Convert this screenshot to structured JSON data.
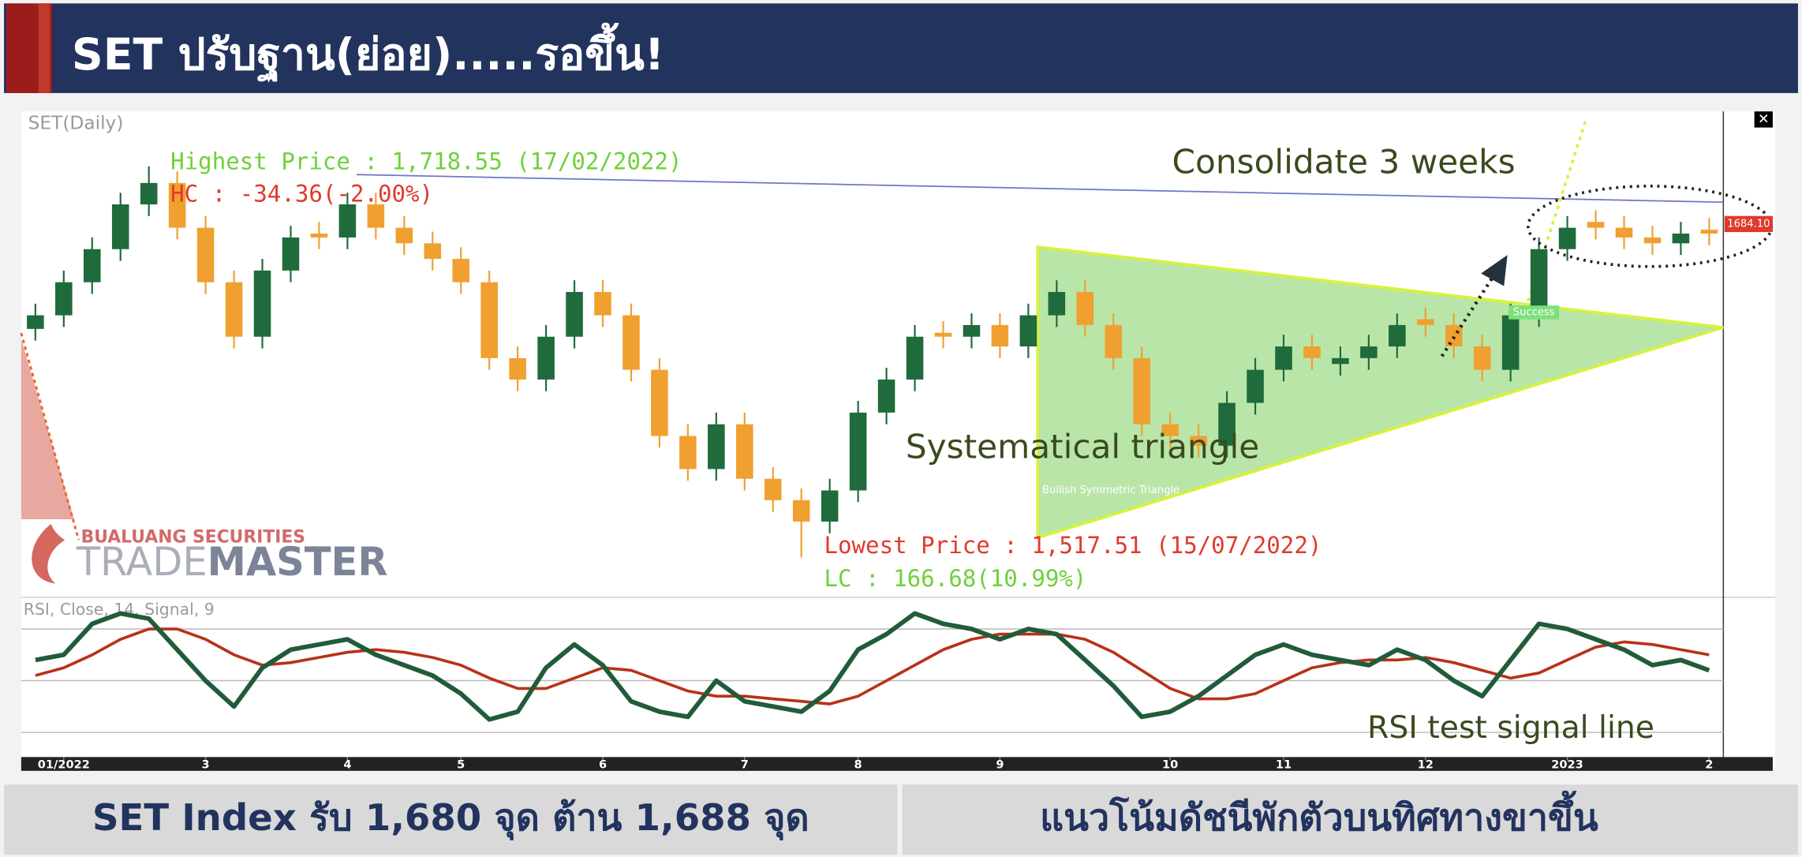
{
  "header": {
    "title": "SET ปรับฐาน(ย่อย).....รอขึ้น!"
  },
  "footer": {
    "left": "SET Index รับ 1,680 จุด ต้าน 1,688 จุด",
    "right": "แนวโน้มดัชนีพักตัวบนทิศทางขาขึ้น"
  },
  "watermark": {
    "company": "BUALUANG SECURITIES",
    "brand_a": "TRADE",
    "brand_b": "MASTER"
  },
  "chart_data": [
    {
      "type": "candlestick",
      "title": "SET(Daily)",
      "up_color": "#1f6b3c",
      "down_color": "#f0a030",
      "ylim": [
        1500,
        1745
      ],
      "xticks": [
        {
          "value": 1,
          "label": "01/2022"
        },
        {
          "value": 6,
          "label": "3"
        },
        {
          "value": 11,
          "label": "4"
        },
        {
          "value": 15,
          "label": "5"
        },
        {
          "value": 20,
          "label": "6"
        },
        {
          "value": 25,
          "label": "7"
        },
        {
          "value": 29,
          "label": "8"
        },
        {
          "value": 34,
          "label": "9"
        },
        {
          "value": 40,
          "label": "10"
        },
        {
          "value": 44,
          "label": "11"
        },
        {
          "value": 49,
          "label": "12"
        },
        {
          "value": 54,
          "label": "2023"
        },
        {
          "value": 59,
          "label": "2"
        }
      ],
      "open": [
        1635,
        1642,
        1659,
        1676,
        1699,
        1710,
        1687,
        1659,
        1631,
        1665,
        1684,
        1682,
        1699,
        1687,
        1679,
        1671,
        1659,
        1620,
        1609,
        1631,
        1654,
        1642,
        1614,
        1580,
        1563,
        1586,
        1558,
        1547,
        1536,
        1552,
        1592,
        1609,
        1633,
        1631,
        1637,
        1626,
        1642,
        1654,
        1637,
        1620,
        1586,
        1580,
        1575,
        1597,
        1614,
        1626,
        1617,
        1620,
        1626,
        1640,
        1637,
        1626,
        1614,
        1642,
        1676,
        1690,
        1687,
        1682,
        1679,
        1686
      ],
      "high": [
        1648,
        1665,
        1682,
        1705,
        1718.55,
        1716,
        1693,
        1665,
        1671,
        1688,
        1690,
        1705,
        1705,
        1693,
        1685,
        1677,
        1665,
        1626,
        1637,
        1660,
        1660,
        1648,
        1620,
        1586,
        1592,
        1592,
        1564,
        1553,
        1558,
        1598,
        1615,
        1637,
        1639,
        1643,
        1643,
        1648,
        1660,
        1660,
        1643,
        1626,
        1592,
        1586,
        1603,
        1620,
        1632,
        1632,
        1626,
        1632,
        1643,
        1646,
        1643,
        1632,
        1648,
        1682,
        1693,
        1696,
        1693,
        1688,
        1690,
        1692
      ],
      "low": [
        1629,
        1636,
        1653,
        1670,
        1693,
        1681,
        1653,
        1625,
        1625,
        1659,
        1676,
        1676,
        1681,
        1673,
        1665,
        1653,
        1614,
        1603,
        1603,
        1625,
        1636,
        1608,
        1574,
        1557,
        1557,
        1552,
        1541,
        1517.51,
        1530,
        1546,
        1586,
        1603,
        1625,
        1625,
        1620,
        1620,
        1636,
        1631,
        1614,
        1580,
        1574,
        1569,
        1569,
        1591,
        1608,
        1614,
        1611,
        1614,
        1620,
        1631,
        1620,
        1608,
        1608,
        1636,
        1670,
        1681,
        1676,
        1673,
        1673,
        1678
      ],
      "close": [
        1642,
        1659,
        1676,
        1699,
        1710,
        1687,
        1659,
        1631,
        1665,
        1682,
        1682,
        1699,
        1687,
        1679,
        1671,
        1659,
        1620,
        1609,
        1631,
        1654,
        1642,
        1614,
        1580,
        1563,
        1586,
        1558,
        1547,
        1536,
        1552,
        1592,
        1609,
        1631,
        1631,
        1637,
        1626,
        1642,
        1654,
        1637,
        1620,
        1586,
        1580,
        1575,
        1597,
        1614,
        1626,
        1620,
        1620,
        1626,
        1637,
        1637,
        1626,
        1614,
        1642,
        1676,
        1687,
        1687,
        1682,
        1679,
        1684,
        1684
      ],
      "annotations": {
        "highest": "Highest Price : 1,718.55 (17/02/2022)",
        "hc": "HC : -34.36(-2.00%)",
        "consolidate": "Consolidate 3 weeks",
        "triangle": "Systematical triangle",
        "pattern": "Bullish Symmetric Triangle",
        "success": "Success",
        "lowest": "Lowest Price : 1,517.51 (15/07/2022)",
        "lc": "LC : 166.68(10.99%)",
        "last_price": "1684.10"
      }
    },
    {
      "type": "line",
      "title": "RSI, Close, 14, Signal, 9",
      "ylim": [
        20,
        80
      ],
      "yticks": [
        30,
        50,
        70
      ],
      "grid": true,
      "annotation": "RSI test signal line",
      "series": [
        {
          "color": "#215c3a",
          "values": [
            58,
            60,
            72,
            76,
            74,
            62,
            50,
            40,
            55,
            62,
            64,
            66,
            60,
            56,
            52,
            45,
            35,
            38,
            55,
            64,
            56,
            42,
            38,
            36,
            50,
            42,
            40,
            38,
            46,
            62,
            68,
            76,
            72,
            70,
            66,
            70,
            68,
            58,
            48,
            36,
            38,
            44,
            52,
            60,
            64,
            60,
            58,
            56,
            62,
            58,
            50,
            44,
            58,
            72,
            70,
            66,
            62,
            56,
            58,
            54
          ]
        },
        {
          "color": "#b8321a",
          "values": [
            52,
            55,
            60,
            66,
            70,
            70,
            66,
            60,
            56,
            57,
            59,
            61,
            62,
            61,
            59,
            56,
            51,
            47,
            47,
            51,
            55,
            54,
            50,
            46,
            44,
            44,
            43,
            42,
            41,
            44,
            50,
            56,
            62,
            66,
            68,
            68,
            68,
            66,
            61,
            54,
            47,
            43,
            43,
            45,
            50,
            55,
            57,
            58,
            58,
            59,
            57,
            54,
            51,
            53,
            58,
            63,
            65,
            64,
            62,
            60
          ]
        }
      ]
    }
  ]
}
